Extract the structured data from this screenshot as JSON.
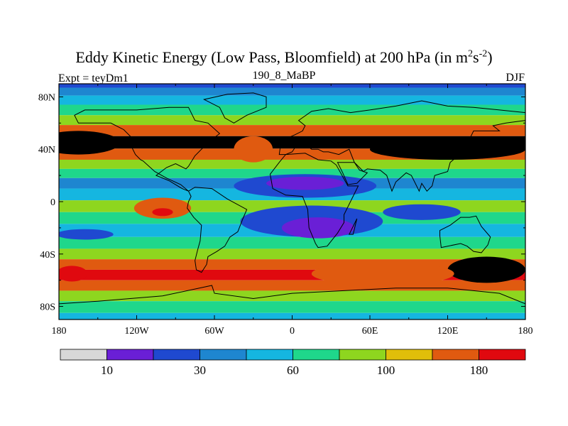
{
  "title": {
    "main": "Eddy Kinetic Energy (Low Pass, Bloomfield) at 200 hPa (in m",
    "sup1": "2",
    "mid": "s",
    "sup2": "-2",
    "close": ")"
  },
  "left_label": "Expt = teyDm1",
  "center_label": "190_8_MaBP",
  "right_label": "DJF",
  "map": {
    "projection": "cylindrical equidistant",
    "lon_range": [
      -180,
      180
    ],
    "lat_range": [
      -90,
      90
    ],
    "x_ticks": [
      {
        "value": -180,
        "label": "180"
      },
      {
        "value": -120,
        "label": "120W"
      },
      {
        "value": -60,
        "label": "60W"
      },
      {
        "value": 0,
        "label": "0"
      },
      {
        "value": 60,
        "label": "60E"
      },
      {
        "value": 120,
        "label": "120E"
      },
      {
        "value": 180,
        "label": "180"
      }
    ],
    "y_ticks": [
      {
        "value": 80,
        "label": "80N"
      },
      {
        "value": 40,
        "label": "40N"
      },
      {
        "value": 0,
        "label": "0"
      },
      {
        "value": -40,
        "label": "40S"
      },
      {
        "value": -80,
        "label": "80S"
      }
    ],
    "bands": [
      {
        "lat": 90,
        "level": 2
      },
      {
        "lat": 84,
        "level": 3
      },
      {
        "lat": 78,
        "level": 4
      },
      {
        "lat": 70,
        "level": 5
      },
      {
        "lat": 62,
        "level": 6
      },
      {
        "lat": 55,
        "level": 8
      },
      {
        "lat": 45,
        "level": 10
      },
      {
        "lat": 36,
        "level": 8
      },
      {
        "lat": 28,
        "level": 6
      },
      {
        "lat": 22,
        "level": 5
      },
      {
        "lat": 14,
        "level": 3
      },
      {
        "lat": 6,
        "level": 4
      },
      {
        "lat": -4,
        "level": 6
      },
      {
        "lat": -12,
        "level": 5
      },
      {
        "lat": -22,
        "level": 4
      },
      {
        "lat": -32,
        "level": 5
      },
      {
        "lat": -40,
        "level": 6
      },
      {
        "lat": -48,
        "level": 8
      },
      {
        "lat": -56,
        "level": 9
      },
      {
        "lat": -64,
        "level": 8
      },
      {
        "lat": -72,
        "level": 6
      },
      {
        "lat": -80,
        "level": 5
      },
      {
        "lat": -90,
        "level": 4
      }
    ],
    "features": [
      {
        "lon": -165,
        "lat": 45,
        "rx": 32,
        "ry": 9,
        "level": 10
      },
      {
        "lon": -30,
        "lat": 40,
        "rx": 15,
        "ry": 10,
        "level": 8
      },
      {
        "lon": 120,
        "lat": 40,
        "rx": 60,
        "ry": 8,
        "level": 10
      },
      {
        "lon": 10,
        "lat": 12,
        "rx": 55,
        "ry": 9,
        "level": 2
      },
      {
        "lon": 15,
        "lat": -15,
        "rx": 55,
        "ry": 12,
        "level": 2
      },
      {
        "lon": 10,
        "lat": 14,
        "rx": 30,
        "ry": 5,
        "level": 1
      },
      {
        "lon": 20,
        "lat": -20,
        "rx": 28,
        "ry": 8,
        "level": 1
      },
      {
        "lon": -100,
        "lat": -5,
        "rx": 22,
        "ry": 8,
        "level": 8
      },
      {
        "lon": -100,
        "lat": -8,
        "rx": 8,
        "ry": 3,
        "level": 9
      },
      {
        "lon": 100,
        "lat": -8,
        "rx": 30,
        "ry": 6,
        "level": 2
      },
      {
        "lon": -160,
        "lat": -25,
        "rx": 22,
        "ry": 4,
        "level": 2
      },
      {
        "lon": 150,
        "lat": -52,
        "rx": 30,
        "ry": 10,
        "level": 10
      },
      {
        "lon": -170,
        "lat": -55,
        "rx": 12,
        "ry": 6,
        "level": 9
      },
      {
        "lon": 70,
        "lat": -55,
        "rx": 55,
        "ry": 9,
        "level": 8
      }
    ],
    "continents": [
      {
        "name": "north-america",
        "points": [
          [
            -168,
            66
          ],
          [
            -160,
            70
          ],
          [
            -140,
            70
          ],
          [
            -120,
            70
          ],
          [
            -95,
            72
          ],
          [
            -80,
            72
          ],
          [
            -75,
            62
          ],
          [
            -65,
            60
          ],
          [
            -56,
            52
          ],
          [
            -65,
            45
          ],
          [
            -75,
            35
          ],
          [
            -80,
            27
          ],
          [
            -82,
            25
          ],
          [
            -90,
            29
          ],
          [
            -97,
            26
          ],
          [
            -105,
            20
          ],
          [
            -95,
            16
          ],
          [
            -85,
            10
          ],
          [
            -80,
            8
          ],
          [
            -86,
            13
          ],
          [
            -97,
            18
          ],
          [
            -106,
            23
          ],
          [
            -115,
            31
          ],
          [
            -117,
            32
          ],
          [
            -121,
            36
          ],
          [
            -124,
            42
          ],
          [
            -124,
            49
          ],
          [
            -130,
            55
          ],
          [
            -140,
            60
          ],
          [
            -150,
            60
          ],
          [
            -165,
            60
          ]
        ]
      },
      {
        "name": "greenland",
        "points": [
          [
            -50,
            82
          ],
          [
            -30,
            83
          ],
          [
            -20,
            80
          ],
          [
            -20,
            72
          ],
          [
            -35,
            66
          ],
          [
            -45,
            60
          ],
          [
            -52,
            64
          ],
          [
            -56,
            72
          ],
          [
            -68,
            78
          ]
        ]
      },
      {
        "name": "south-america",
        "points": [
          [
            -80,
            8
          ],
          [
            -75,
            11
          ],
          [
            -62,
            10
          ],
          [
            -50,
            2
          ],
          [
            -35,
            -6
          ],
          [
            -38,
            -13
          ],
          [
            -42,
            -23
          ],
          [
            -48,
            -27
          ],
          [
            -52,
            -34
          ],
          [
            -58,
            -38
          ],
          [
            -65,
            -42
          ],
          [
            -66,
            -48
          ],
          [
            -70,
            -54
          ],
          [
            -74,
            -52
          ],
          [
            -75,
            -45
          ],
          [
            -73,
            -37
          ],
          [
            -71,
            -30
          ],
          [
            -70,
            -18
          ],
          [
            -76,
            -12
          ],
          [
            -81,
            -5
          ],
          [
            -80,
            0
          ],
          [
            -78,
            4
          ]
        ]
      },
      {
        "name": "africa",
        "points": [
          [
            -17,
            21
          ],
          [
            -10,
            30
          ],
          [
            -5,
            36
          ],
          [
            10,
            37
          ],
          [
            20,
            32
          ],
          [
            30,
            31
          ],
          [
            34,
            28
          ],
          [
            43,
            12
          ],
          [
            51,
            12
          ],
          [
            45,
            0
          ],
          [
            40,
            -10
          ],
          [
            40,
            -16
          ],
          [
            35,
            -24
          ],
          [
            27,
            -34
          ],
          [
            20,
            -35
          ],
          [
            18,
            -32
          ],
          [
            13,
            -20
          ],
          [
            12,
            -6
          ],
          [
            8,
            4
          ],
          [
            -5,
            5
          ],
          [
            -15,
            10
          ]
        ]
      },
      {
        "name": "eurasia",
        "points": [
          [
            -10,
            36
          ],
          [
            -9,
            43
          ],
          [
            -2,
            44
          ],
          [
            -5,
            48
          ],
          [
            2,
            51
          ],
          [
            8,
            54
          ],
          [
            10,
            58
          ],
          [
            5,
            62
          ],
          [
            15,
            69
          ],
          [
            28,
            71
          ],
          [
            45,
            68
          ],
          [
            60,
            70
          ],
          [
            80,
            73
          ],
          [
            100,
            77
          ],
          [
            120,
            73
          ],
          [
            140,
            72
          ],
          [
            160,
            70
          ],
          [
            180,
            68
          ],
          [
            180,
            62
          ],
          [
            165,
            60
          ],
          [
            155,
            58
          ],
          [
            160,
            54
          ],
          [
            140,
            54
          ],
          [
            135,
            44
          ],
          [
            128,
            35
          ],
          [
            122,
            30
          ],
          [
            120,
            23
          ],
          [
            110,
            20
          ],
          [
            108,
            12
          ],
          [
            104,
            8
          ],
          [
            100,
            14
          ],
          [
            98,
            8
          ],
          [
            92,
            20
          ],
          [
            88,
            22
          ],
          [
            80,
            15
          ],
          [
            77,
            8
          ],
          [
            73,
            20
          ],
          [
            68,
            24
          ],
          [
            58,
            25
          ],
          [
            55,
            23
          ],
          [
            52,
            26
          ],
          [
            48,
            30
          ],
          [
            44,
            40
          ],
          [
            36,
            36
          ],
          [
            28,
            38
          ],
          [
            24,
            38
          ],
          [
            20,
            40
          ],
          [
            15,
            40
          ],
          [
            10,
            44
          ],
          [
            2,
            41
          ],
          [
            0,
            38
          ],
          [
            -5,
            36
          ]
        ]
      },
      {
        "name": "arabia",
        "points": [
          [
            35,
            30
          ],
          [
            39,
            22
          ],
          [
            43,
            13
          ],
          [
            50,
            14
          ],
          [
            58,
            22
          ],
          [
            52,
            24
          ],
          [
            48,
            30
          ]
        ]
      },
      {
        "name": "australia",
        "points": [
          [
            114,
            -22
          ],
          [
            122,
            -18
          ],
          [
            130,
            -12
          ],
          [
            137,
            -12
          ],
          [
            142,
            -11
          ],
          [
            146,
            -19
          ],
          [
            153,
            -27
          ],
          [
            151,
            -33
          ],
          [
            146,
            -39
          ],
          [
            140,
            -38
          ],
          [
            135,
            -34
          ],
          [
            130,
            -32
          ],
          [
            115,
            -35
          ],
          [
            114,
            -26
          ]
        ]
      },
      {
        "name": "antarctica",
        "points": [
          [
            -180,
            -90
          ],
          [
            -180,
            -78
          ],
          [
            -150,
            -76
          ],
          [
            -100,
            -72
          ],
          [
            -62,
            -64
          ],
          [
            -60,
            -70
          ],
          [
            -30,
            -74
          ],
          [
            0,
            -70
          ],
          [
            40,
            -68
          ],
          [
            80,
            -66
          ],
          [
            120,
            -66
          ],
          [
            160,
            -70
          ],
          [
            180,
            -78
          ],
          [
            180,
            -90
          ]
        ]
      },
      {
        "name": "madagascar",
        "points": [
          [
            44,
            -25
          ],
          [
            49,
            -15
          ],
          [
            50,
            -13
          ],
          [
            47,
            -25
          ]
        ]
      }
    ]
  },
  "colorbar": {
    "colors": [
      "#d8d8d8",
      "#6a1fd6",
      "#1f49d0",
      "#1e86d0",
      "#15b6e0",
      "#1fd78b",
      "#8ed61f",
      "#e0be0a",
      "#e05a10",
      "#e0090f"
    ],
    "labels": [
      {
        "text": "10",
        "boundary": 1
      },
      {
        "text": "30",
        "boundary": 3
      },
      {
        "text": "60",
        "boundary": 5
      },
      {
        "text": "100",
        "boundary": 7
      },
      {
        "text": "180",
        "boundary": 9
      }
    ]
  }
}
